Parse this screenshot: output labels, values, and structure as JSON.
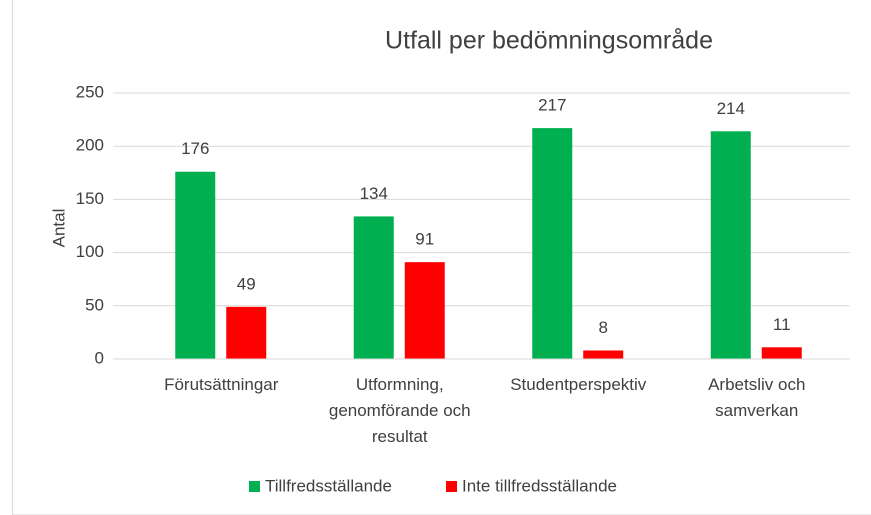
{
  "chart_data": {
    "type": "bar",
    "title": "Utfall per bedömningsområde",
    "y_label": "Antal",
    "categories": [
      "Förutsättningar",
      "Utformning, genomförande och resultat",
      "Studentperspektiv",
      "Arbetsliv och samverkan"
    ],
    "series": [
      {
        "name": "Tillfredsställande",
        "color": "#00b050",
        "values": [
          176,
          134,
          217,
          214
        ]
      },
      {
        "name": "Inte tillfredsställande",
        "color": "#ff0000",
        "values": [
          49,
          91,
          8,
          11
        ]
      }
    ],
    "ylim": [
      0,
      250
    ],
    "yticks": [
      0,
      50,
      100,
      150,
      200,
      250
    ],
    "grid": true,
    "legend": "bottom"
  }
}
